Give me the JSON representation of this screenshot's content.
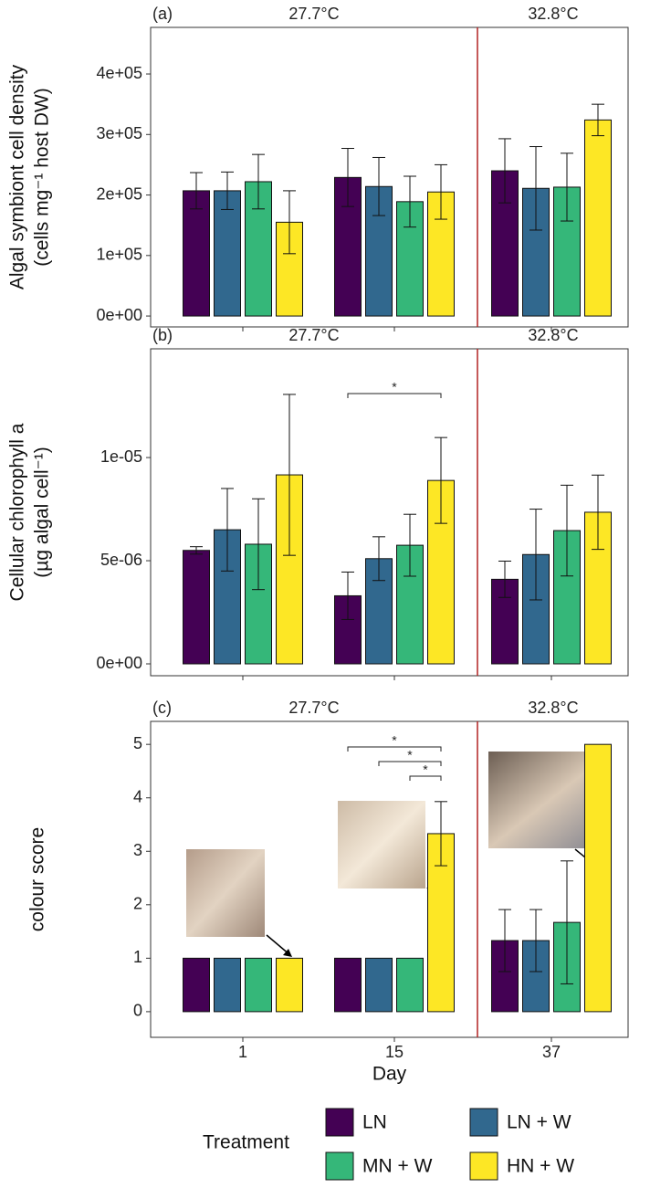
{
  "chart_data": [
    {
      "type": "bar",
      "panel_label": "(a)",
      "temperature_labels": [
        "27.7°C",
        "32.8°C"
      ],
      "ylabel": [
        "Algal symbiont cell density",
        "(cells mg⁻¹ host DW)"
      ],
      "ylim": [
        -18000,
        477000
      ],
      "yticks": [
        {
          "value": 0,
          "label": "0e+00"
        },
        {
          "value": 100000,
          "label": "1e+05"
        },
        {
          "value": 200000,
          "label": "2e+05"
        },
        {
          "value": 300000,
          "label": "3e+05"
        },
        {
          "value": 400000,
          "label": "4e+05"
        }
      ],
      "series": [
        {
          "name": "LN",
          "color": "#440154",
          "values": [
            207000,
            229000,
            240000
          ],
          "errors": [
            30000,
            48000,
            53000
          ]
        },
        {
          "name": "LN + W",
          "color": "#31688e",
          "values": [
            207000,
            214000,
            211000
          ],
          "errors": [
            31000,
            48000,
            69000
          ]
        },
        {
          "name": "MN + W",
          "color": "#35b779",
          "values": [
            222000,
            189000,
            213000
          ],
          "errors": [
            45000,
            42000,
            56000
          ]
        },
        {
          "name": "HN + W",
          "color": "#fde725",
          "values": [
            155000,
            205000,
            324000
          ],
          "errors": [
            52000,
            45000,
            26000
          ]
        }
      ]
    },
    {
      "type": "bar",
      "panel_label": "(b)",
      "temperature_labels": [
        "27.7°C",
        "32.8°C"
      ],
      "ylabel": [
        "Cellular chlorophyll a",
        "(µg algal cell⁻¹)"
      ],
      "ylim": [
        -5.75e-07,
        1.527e-05
      ],
      "yticks": [
        {
          "value": 0,
          "label": "0e+00"
        },
        {
          "value": 5e-06,
          "label": "5e-06"
        },
        {
          "value": 1e-05,
          "label": "1e-05"
        }
      ],
      "annotations": [
        "*"
      ],
      "series": [
        {
          "name": "LN",
          "color": "#440154",
          "values": [
            5.5e-06,
            3.3e-06,
            4.1e-06
          ],
          "errors": [
            1.8e-07,
            1.15e-06,
            8.8e-07
          ]
        },
        {
          "name": "LN + W",
          "color": "#31688e",
          "values": [
            6.5e-06,
            5.1e-06,
            5.3e-06
          ],
          "errors": [
            2e-06,
            1.06e-06,
            2.2e-06
          ]
        },
        {
          "name": "MN + W",
          "color": "#35b779",
          "values": [
            5.8e-06,
            5.75e-06,
            6.46e-06
          ],
          "errors": [
            2.2e-06,
            1.5e-06,
            2.2e-06
          ]
        },
        {
          "name": "HN + W",
          "color": "#fde725",
          "values": [
            9.16e-06,
            8.89e-06,
            7.35e-06
          ],
          "errors": [
            3.9e-06,
            2.08e-06,
            1.8e-06
          ]
        }
      ]
    },
    {
      "type": "bar",
      "panel_label": "(c)",
      "temperature_labels": [
        "27.7°C",
        "32.8°C"
      ],
      "ylabel": [
        "colour score"
      ],
      "xlabel": "Day",
      "categories": [
        "1",
        "15",
        "37"
      ],
      "ylim": [
        -0.48,
        5.43
      ],
      "yticks": [
        0,
        1,
        2,
        3,
        4,
        5
      ],
      "annotations": [
        "*",
        "*",
        "*"
      ],
      "legend_title": "Treatment",
      "series": [
        {
          "name": "LN",
          "color": "#440154",
          "values": [
            1,
            1,
            1.33
          ],
          "errors": [
            0,
            0,
            0.58
          ]
        },
        {
          "name": "LN + W",
          "color": "#31688e",
          "values": [
            1,
            1,
            1.33
          ],
          "errors": [
            0,
            0,
            0.58
          ]
        },
        {
          "name": "MN + W",
          "color": "#35b779",
          "values": [
            1,
            1,
            1.67
          ],
          "errors": [
            0,
            0,
            1.15
          ]
        },
        {
          "name": "HN + W",
          "color": "#fde725",
          "values": [
            1,
            3.33,
            5
          ],
          "errors": [
            0,
            0.6,
            0
          ]
        }
      ]
    }
  ]
}
